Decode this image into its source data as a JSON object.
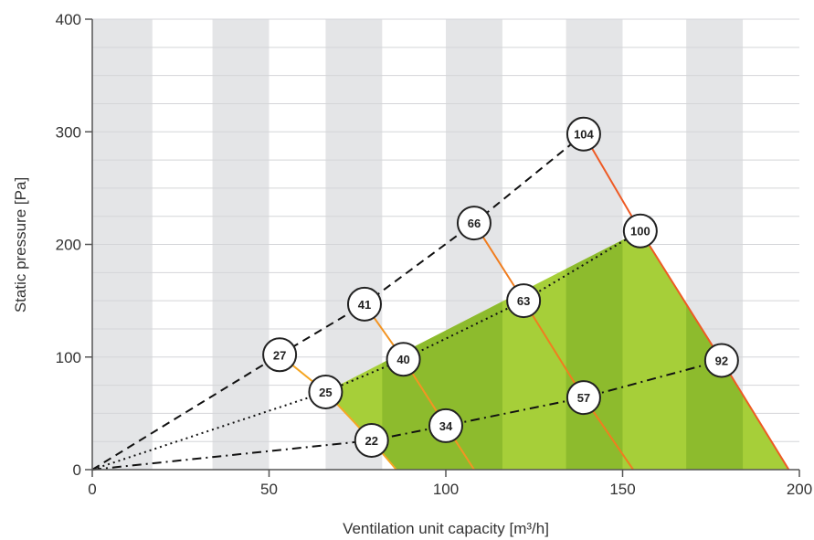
{
  "chart_data": {
    "type": "line",
    "title": "",
    "xlabel": "Ventilation unit capacity [m³/h]",
    "ylabel": "Static pressure [Pa]",
    "xlim": [
      0,
      200
    ],
    "ylim": [
      0,
      400
    ],
    "xticks": [
      0,
      50,
      100,
      150,
      200
    ],
    "yticks": [
      0,
      100,
      200,
      300,
      400
    ],
    "x_tick_labels": [
      "0",
      "50",
      "100",
      "150",
      "200"
    ],
    "y_tick_labels": [
      "0",
      "100",
      "200",
      "300",
      "400"
    ],
    "minor_y_step": 25,
    "background_bands_x": [
      [
        0,
        17
      ],
      [
        34,
        50
      ],
      [
        66,
        82
      ],
      [
        100,
        116
      ],
      [
        134,
        150
      ],
      [
        168,
        184
      ]
    ],
    "grid": true,
    "legend": "none",
    "shaded_region": {
      "polygon": [
        [
          66,
          69
        ],
        [
          155,
          212
        ],
        [
          197,
          0
        ],
        [
          86,
          0
        ]
      ],
      "dark_bands_x": [
        [
          82,
          116
        ],
        [
          134,
          150
        ],
        [
          168,
          184
        ]
      ]
    },
    "system_curves": [
      {
        "style": "dashed",
        "points": [
          [
            0,
            0
          ],
          [
            53,
            102
          ],
          [
            77,
            147
          ],
          [
            108,
            219
          ],
          [
            139,
            298
          ]
        ]
      },
      {
        "style": "dotted",
        "points": [
          [
            0,
            0
          ],
          [
            66,
            69
          ],
          [
            88,
            98
          ],
          [
            122,
            150
          ],
          [
            155,
            212
          ]
        ]
      },
      {
        "style": "dashdot",
        "points": [
          [
            0,
            0
          ],
          [
            79,
            26
          ],
          [
            100,
            39
          ],
          [
            139,
            64
          ],
          [
            178,
            97
          ]
        ]
      }
    ],
    "fan_lines": [
      {
        "color": "#f5a623",
        "points": [
          [
            53,
            102
          ],
          [
            66,
            69
          ],
          [
            79,
            26
          ],
          [
            86,
            0
          ]
        ]
      },
      {
        "color": "#f39422",
        "points": [
          [
            77,
            147
          ],
          [
            88,
            98
          ],
          [
            100,
            39
          ],
          [
            108,
            0
          ]
        ]
      },
      {
        "color": "#f07d1f",
        "points": [
          [
            108,
            219
          ],
          [
            122,
            150
          ],
          [
            139,
            64
          ],
          [
            153,
            0
          ]
        ]
      },
      {
        "color": "#ee5a24",
        "points": [
          [
            139,
            298
          ],
          [
            155,
            212
          ],
          [
            178,
            97
          ],
          [
            197,
            0
          ]
        ]
      }
    ],
    "markers": [
      {
        "x": 53,
        "y": 102,
        "label": "27"
      },
      {
        "x": 77,
        "y": 147,
        "label": "41"
      },
      {
        "x": 108,
        "y": 219,
        "label": "66"
      },
      {
        "x": 139,
        "y": 298,
        "label": "104"
      },
      {
        "x": 66,
        "y": 69,
        "label": "25"
      },
      {
        "x": 88,
        "y": 98,
        "label": "40"
      },
      {
        "x": 122,
        "y": 150,
        "label": "63"
      },
      {
        "x": 155,
        "y": 212,
        "label": "100"
      },
      {
        "x": 79,
        "y": 26,
        "label": "22"
      },
      {
        "x": 100,
        "y": 39,
        "label": "34"
      },
      {
        "x": 139,
        "y": 64,
        "label": "57"
      },
      {
        "x": 178,
        "y": 97,
        "label": "92"
      }
    ],
    "colors": {
      "band": "#e4e5e7",
      "grid": "#d4d5d8",
      "axis": "#555555",
      "fill_light": "#a6cf39",
      "fill_dark": "#8dbb2d",
      "marker_fill": "#ffffff",
      "marker_stroke": "#222222",
      "curve": "#111111"
    }
  }
}
